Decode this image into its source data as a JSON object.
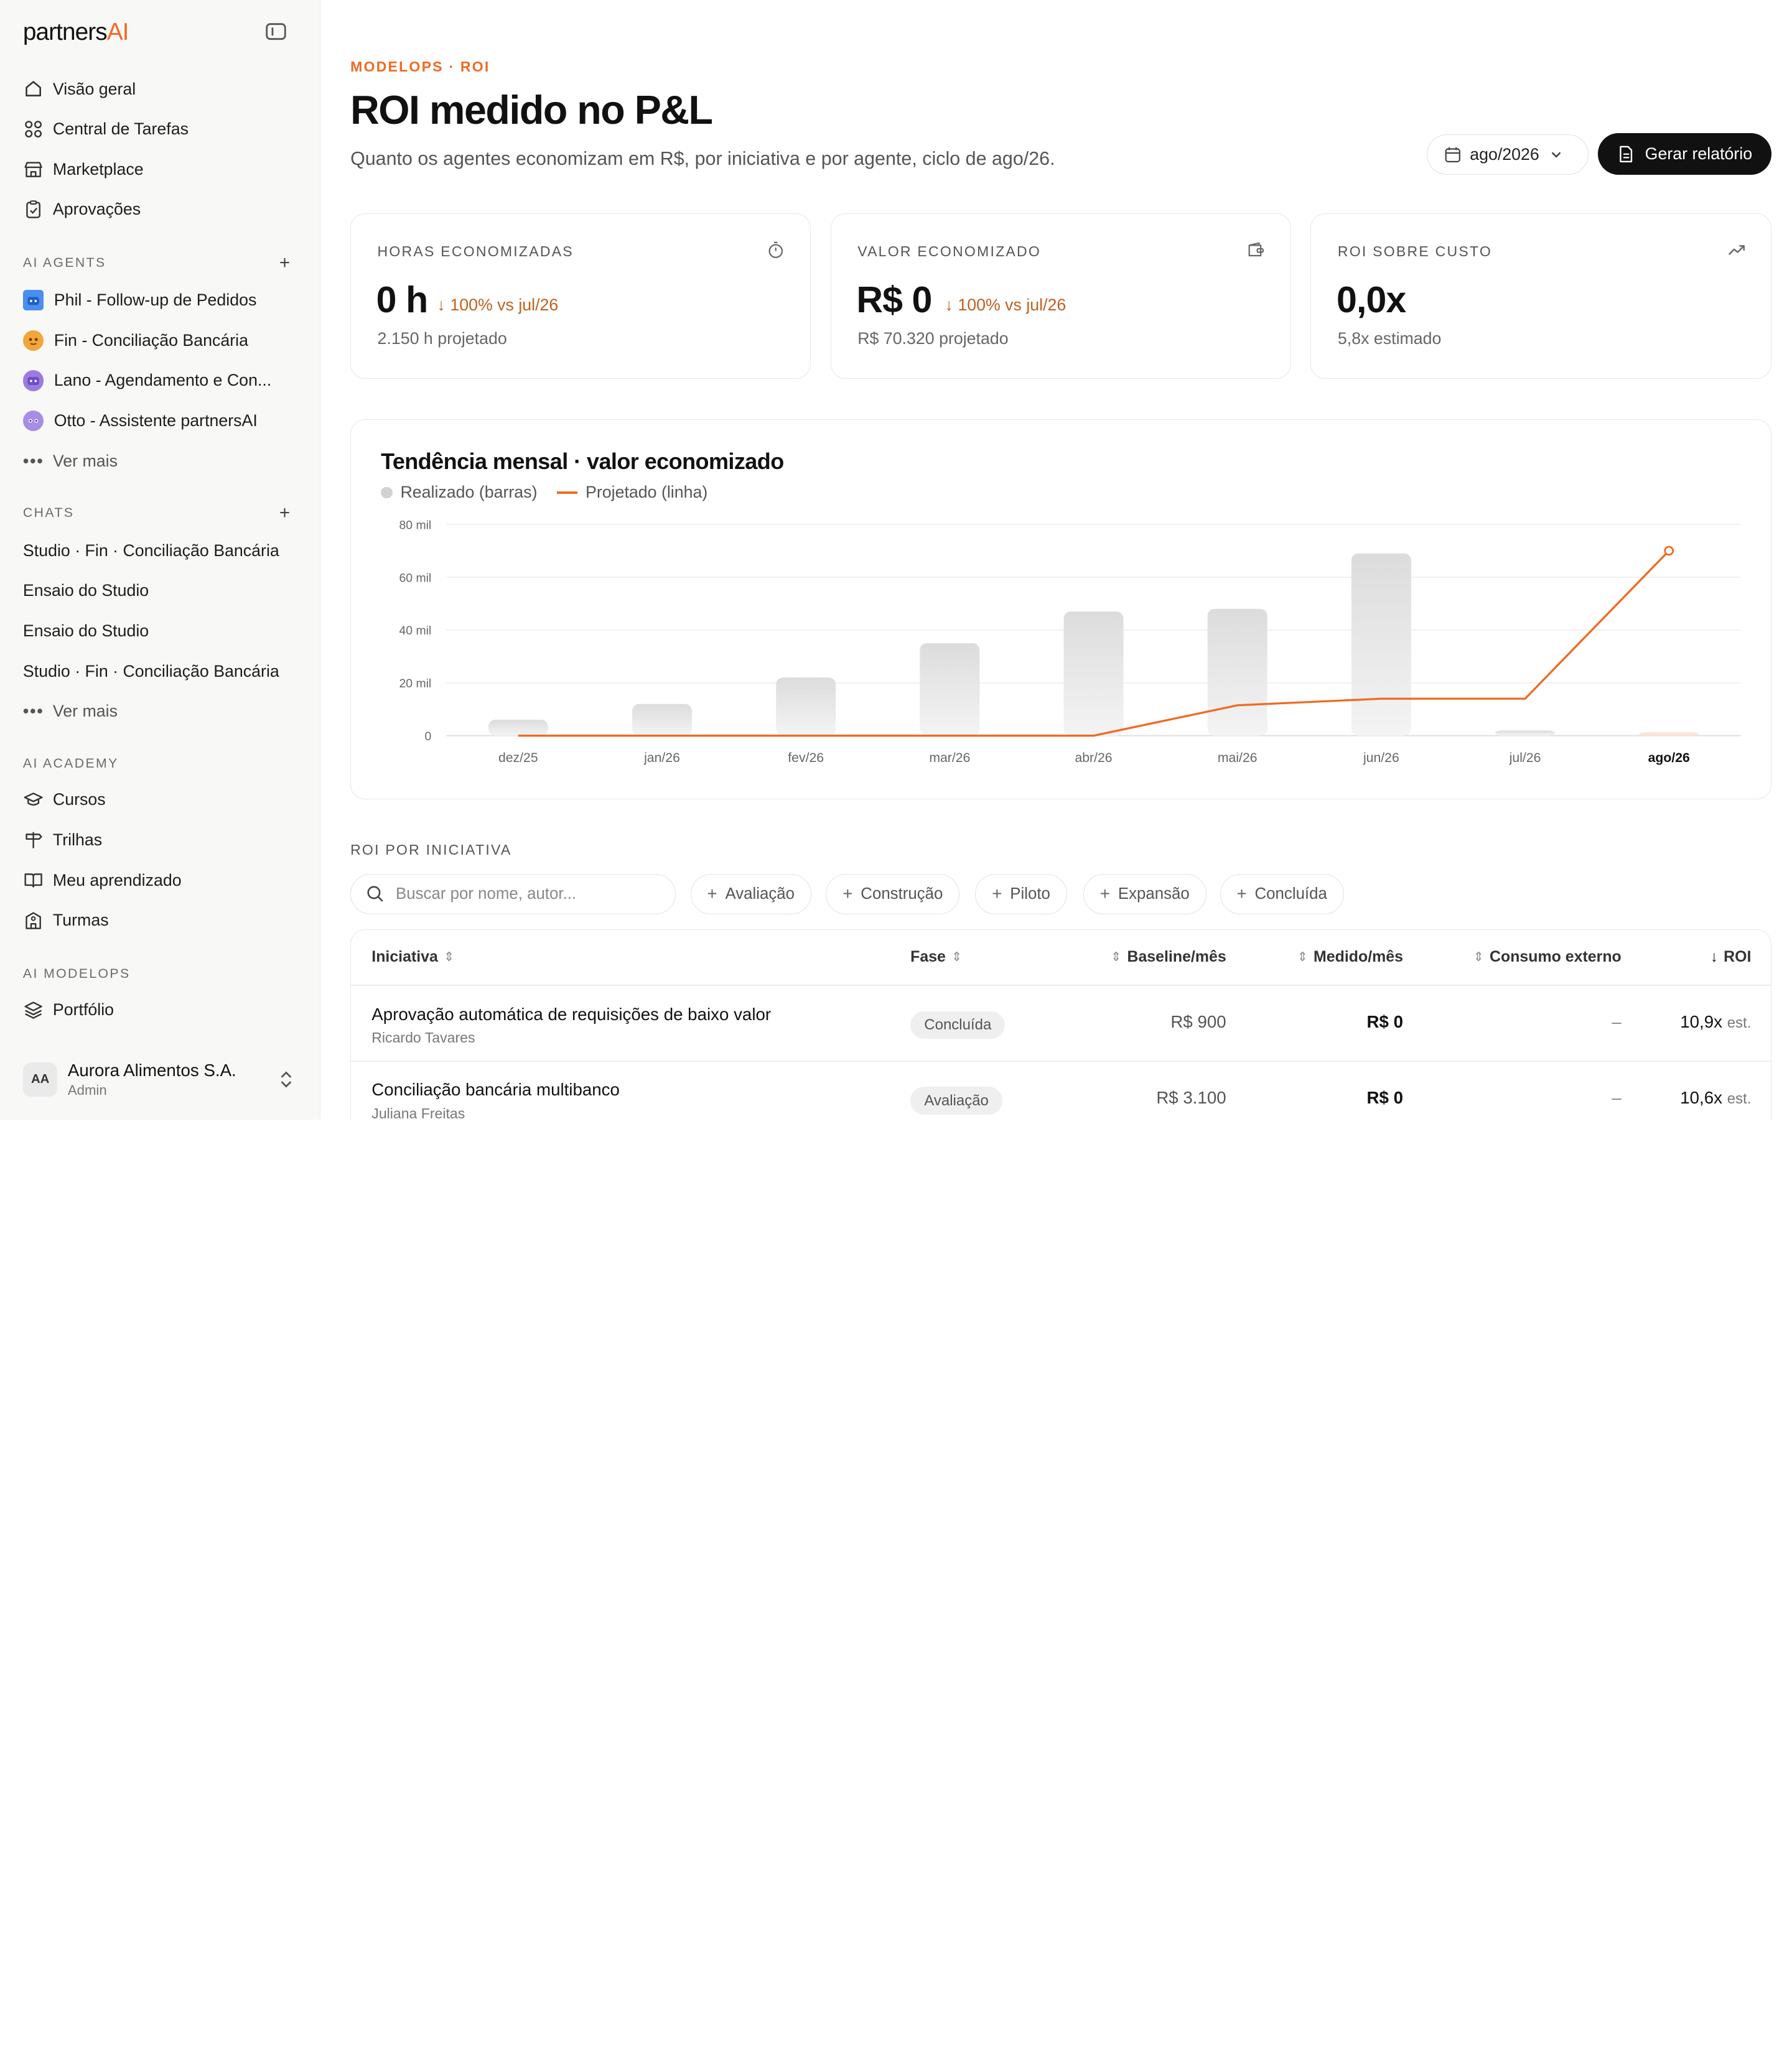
{
  "brand": {
    "name": "partners",
    "accent": "AI"
  },
  "nav": {
    "main": [
      {
        "label": "Visão geral",
        "icon": "home-icon"
      },
      {
        "label": "Central de Tarefas",
        "icon": "grid-icon"
      },
      {
        "label": "Marketplace",
        "icon": "store-icon"
      },
      {
        "label": "Aprovações",
        "icon": "clipboard-check-icon"
      }
    ],
    "agents_label": "AI AGENTS",
    "agents": [
      {
        "label": "Phil - Follow-up de Pedidos",
        "color": "#4a8ef0"
      },
      {
        "label": "Fin - Conciliação Bancária",
        "color": "#f2a53a"
      },
      {
        "label": "Lano - Agendamento e Con...",
        "color": "#9b7be0"
      },
      {
        "label": "Otto - Assistente partnersAI",
        "color": "#a78ce8"
      }
    ],
    "agents_more": "Ver mais",
    "chats_label": "CHATS",
    "chats": [
      "Studio · Fin · Conciliação Bancária",
      "Ensaio do Studio",
      "Ensaio do Studio",
      "Studio · Fin · Conciliação Bancária"
    ],
    "chats_more": "Ver mais",
    "academy_label": "AI ACADEMY",
    "academy": [
      {
        "label": "Cursos",
        "icon": "graduation-cap-icon"
      },
      {
        "label": "Trilhas",
        "icon": "signpost-icon"
      },
      {
        "label": "Meu aprendizado",
        "icon": "book-open-icon"
      },
      {
        "label": "Turmas",
        "icon": "building-icon"
      }
    ],
    "modelops_label": "AI MODELOPS",
    "modelops": [
      {
        "label": "Portfólio",
        "icon": "layers-icon"
      }
    ]
  },
  "account": {
    "initials": "AA",
    "name": "Aurora Alimentos S.A.",
    "role": "Admin"
  },
  "header": {
    "eyebrow": "MODELOPS · ROI",
    "title": "ROI medido no P&L",
    "subtitle": "Quanto os agentes economizam em R$, por iniciativa e por agente, ciclo de ago/26.",
    "period": "ago/2026",
    "report_button": "Gerar relatório"
  },
  "kpis": [
    {
      "label": "HORAS ECONOMIZADAS",
      "value": "0 h",
      "delta": "↓ 100% vs jul/26",
      "sub": "2.150 h projetado",
      "icon": "timer-icon"
    },
    {
      "label": "VALOR ECONOMIZADO",
      "value": "R$ 0",
      "delta": "↓ 100% vs jul/26",
      "sub": "R$ 70.320 projetado",
      "icon": "wallet-icon"
    },
    {
      "label": "ROI SOBRE CUSTO",
      "value": "0,0x",
      "delta": "",
      "sub": "5,8x estimado",
      "icon": "trending-up-icon"
    }
  ],
  "chart": {
    "title": "Tendência mensal · valor economizado",
    "legend_bars": "Realizado (barras)",
    "legend_line": "Projetado (linha)"
  },
  "chart_data": {
    "type": "bar",
    "categories": [
      "dez/25",
      "jan/26",
      "fev/26",
      "mar/26",
      "abr/26",
      "mai/26",
      "jun/26",
      "jul/26",
      "ago/26"
    ],
    "series": [
      {
        "name": "Realizado (barras)",
        "type": "bar",
        "values": [
          6000,
          12000,
          22000,
          35000,
          47000,
          48000,
          69000,
          2000,
          1000
        ]
      },
      {
        "name": "Projetado (linha)",
        "type": "line",
        "values": [
          0,
          0,
          0,
          0,
          0,
          11500,
          14000,
          14000,
          70000
        ]
      }
    ],
    "yticks": [
      "0",
      "20 mil",
      "40 mil",
      "60 mil",
      "80 mil"
    ],
    "ylim": [
      0,
      80000
    ],
    "grid": true,
    "colors": {
      "bar": "#e3e3e3",
      "line": "#ef6b23"
    }
  },
  "initiatives": {
    "section_label": "ROI POR INICIATIVA",
    "search_placeholder": "Buscar por nome, autor...",
    "filters": [
      "Avaliação",
      "Construção",
      "Piloto",
      "Expansão",
      "Concluída"
    ],
    "columns": {
      "name": "Iniciativa",
      "phase": "Fase",
      "baseline": "Baseline/mês",
      "measured": "Medido/mês",
      "external": "Consumo externo",
      "roi": "ROI"
    },
    "rows": [
      {
        "name": "Aprovação automática de requisições de baixo valor",
        "author": "Ricardo Tavares",
        "phase": "Concluída",
        "baseline": "R$ 900",
        "measured": "R$ 0",
        "external": "–",
        "roi": "10,9x",
        "roi_suffix": "est."
      },
      {
        "name": "Conciliação bancária multibanco",
        "author": "Juliana Freitas",
        "phase": "Avaliação",
        "baseline": "R$ 3.100",
        "measured": "R$ 0",
        "external": "–",
        "roi": "10,6x",
        "roi_suffix": "est."
      }
    ]
  }
}
